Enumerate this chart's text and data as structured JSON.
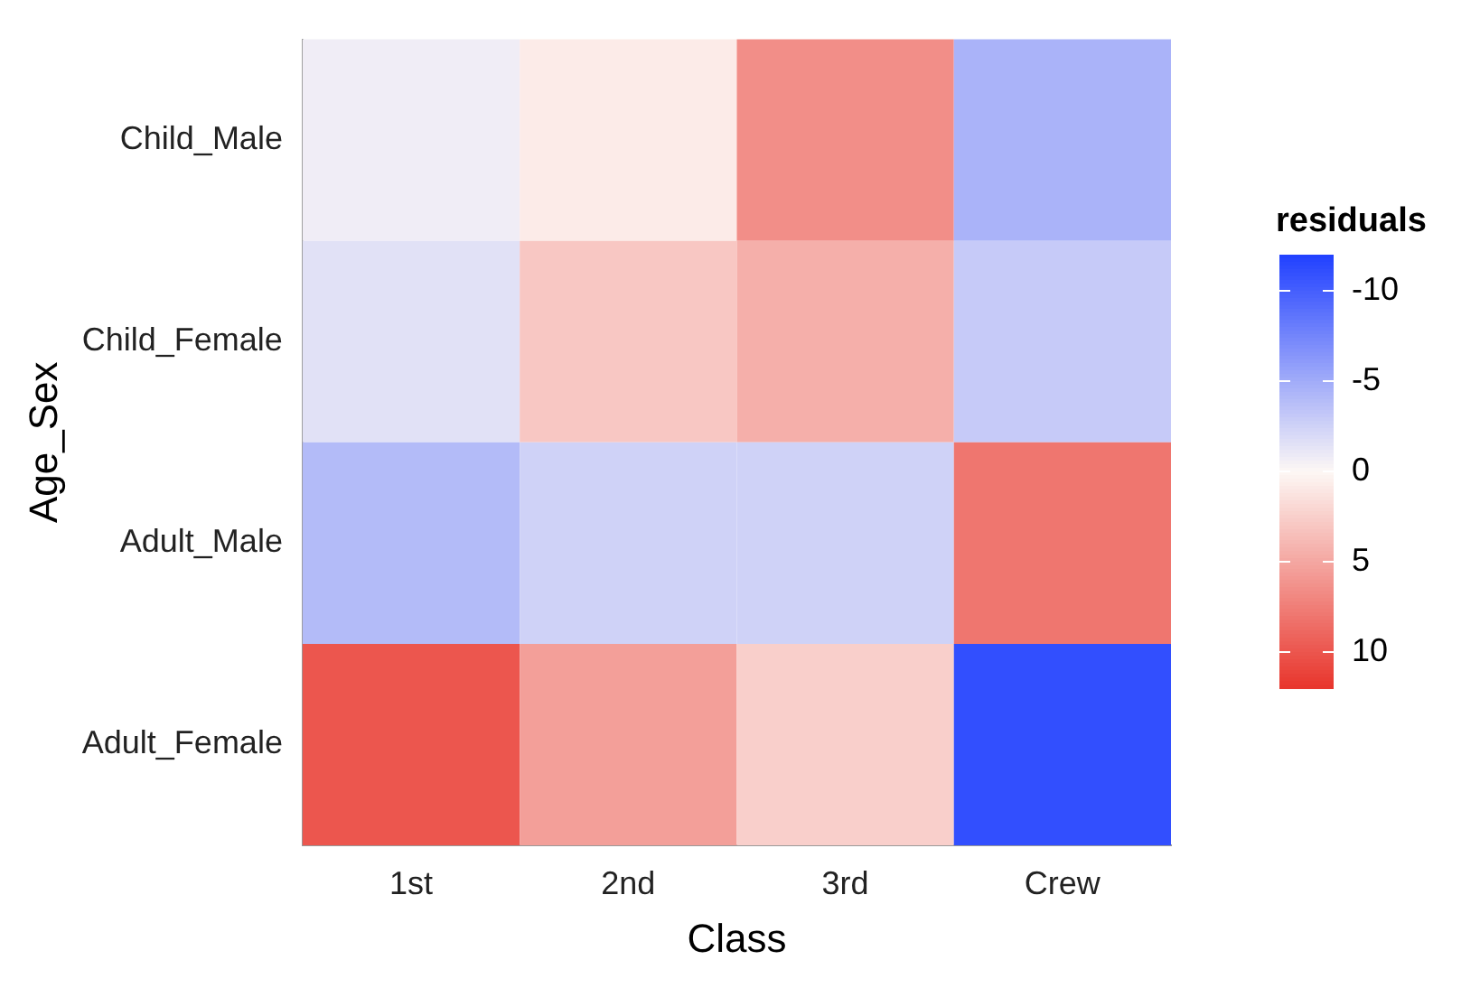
{
  "chart_data": {
    "type": "heatmap",
    "xlabel": "Class",
    "ylabel": "Age_Sex",
    "legend_title": "residuals",
    "categories": [
      "1st",
      "2nd",
      "3rd",
      "Crew"
    ],
    "y_categories": [
      "Child_Male",
      "Child_Female",
      "Adult_Male",
      "Adult_Female"
    ],
    "cells": [
      [
        -0.7,
        0.8,
        6.5,
        -4.5
      ],
      [
        -1.5,
        3,
        4.5,
        -3
      ],
      [
        -4,
        -2.5,
        -2.5,
        8
      ],
      [
        10,
        5.5,
        2.5,
        -11
      ]
    ],
    "clim": [
      -12,
      12
    ],
    "cticks": [
      -10,
      -5,
      0,
      5,
      10
    ]
  }
}
